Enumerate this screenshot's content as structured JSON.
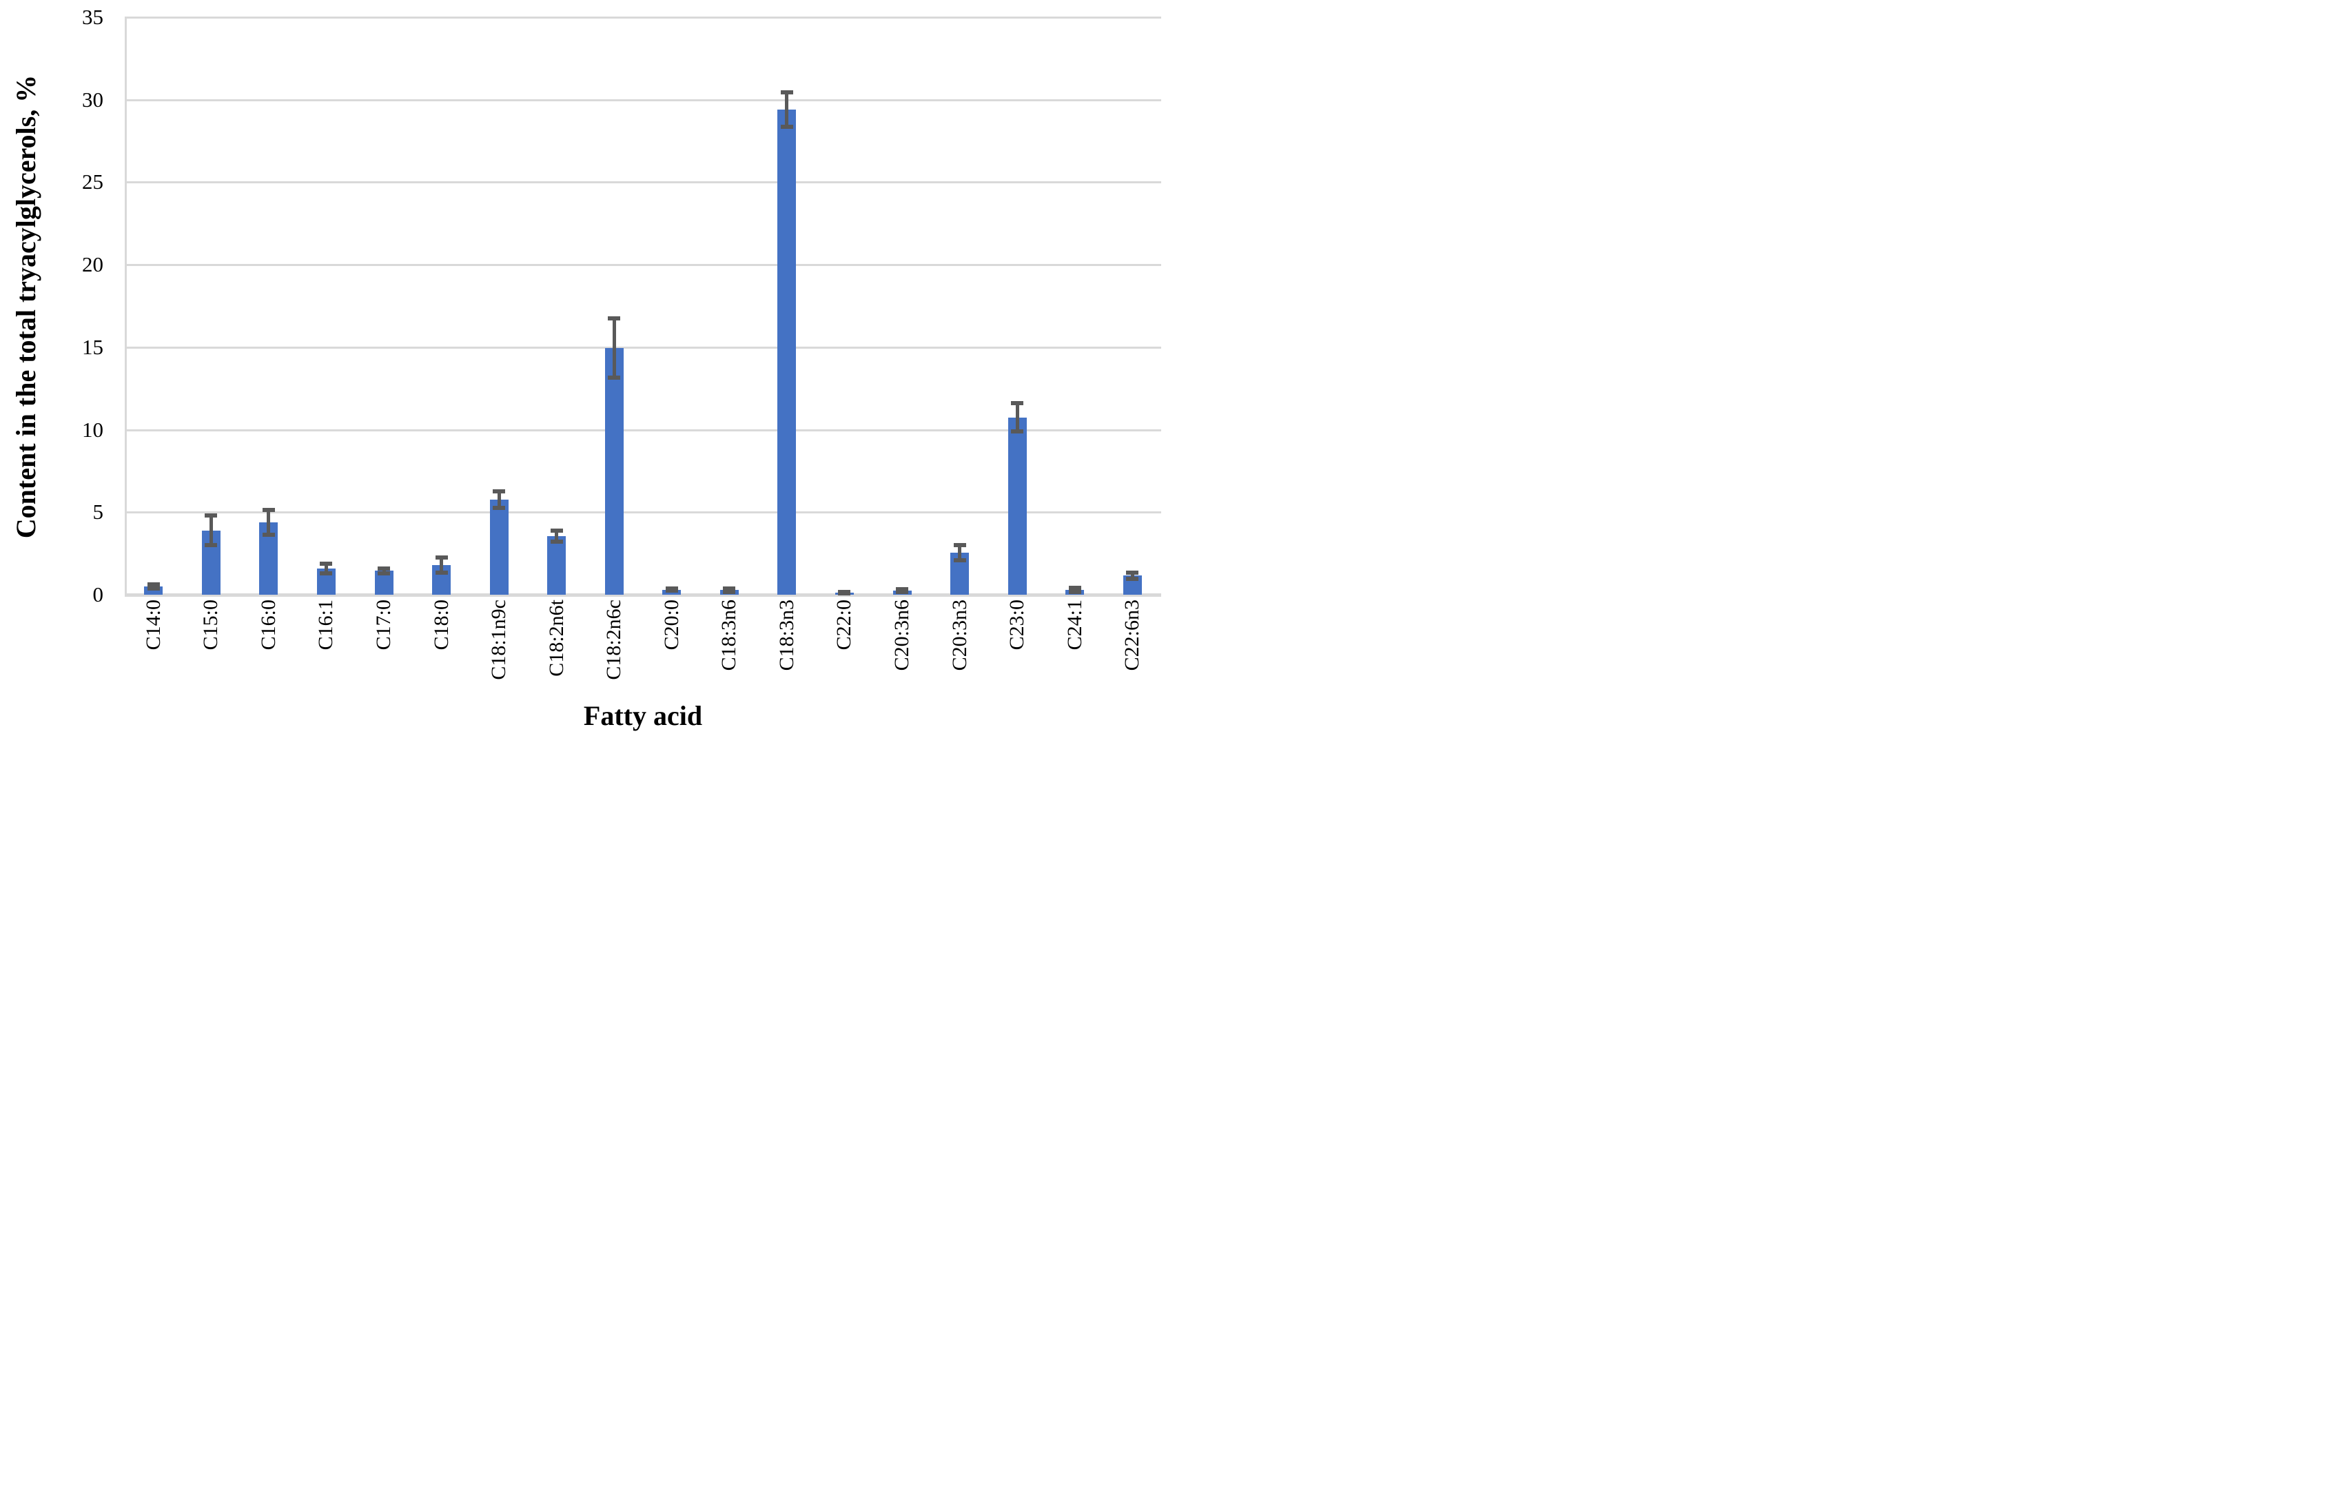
{
  "chart_data": {
    "type": "bar",
    "title": "",
    "xlabel": "Fatty acid",
    "ylabel": "Content in the total tryacylglycerols,  %",
    "categories": [
      "C14:0",
      "C15:0",
      "C16:0",
      "C16:1",
      "C17:0",
      "C18:0",
      "C18:1n9c",
      "C18:2n6t",
      "C18:2n6c",
      "C20:0",
      "C18:3n6",
      "C18:3n3",
      "C22:0",
      "C20:3n6",
      "C20:3n3",
      "C23:0",
      "C24:1",
      "C22:6n3"
    ],
    "values": [
      0.5,
      3.9,
      4.4,
      1.6,
      1.45,
      1.8,
      5.75,
      3.55,
      14.95,
      0.3,
      0.28,
      29.4,
      0.13,
      0.25,
      2.55,
      10.75,
      0.3,
      1.15
    ],
    "error_bars": [
      0.12,
      0.9,
      0.75,
      0.3,
      0.15,
      0.45,
      0.5,
      0.35,
      1.8,
      0.07,
      0.1,
      1.05,
      0.05,
      0.1,
      0.45,
      0.85,
      0.12,
      0.17
    ],
    "ylim": [
      0,
      35
    ],
    "yticks": [
      0,
      5,
      10,
      15,
      20,
      25,
      30,
      35
    ],
    "grid": "horizontal",
    "legend": "none",
    "bar_color": "#4472C4",
    "error_color": "#595959",
    "grid_color": "#D9D9D9"
  }
}
